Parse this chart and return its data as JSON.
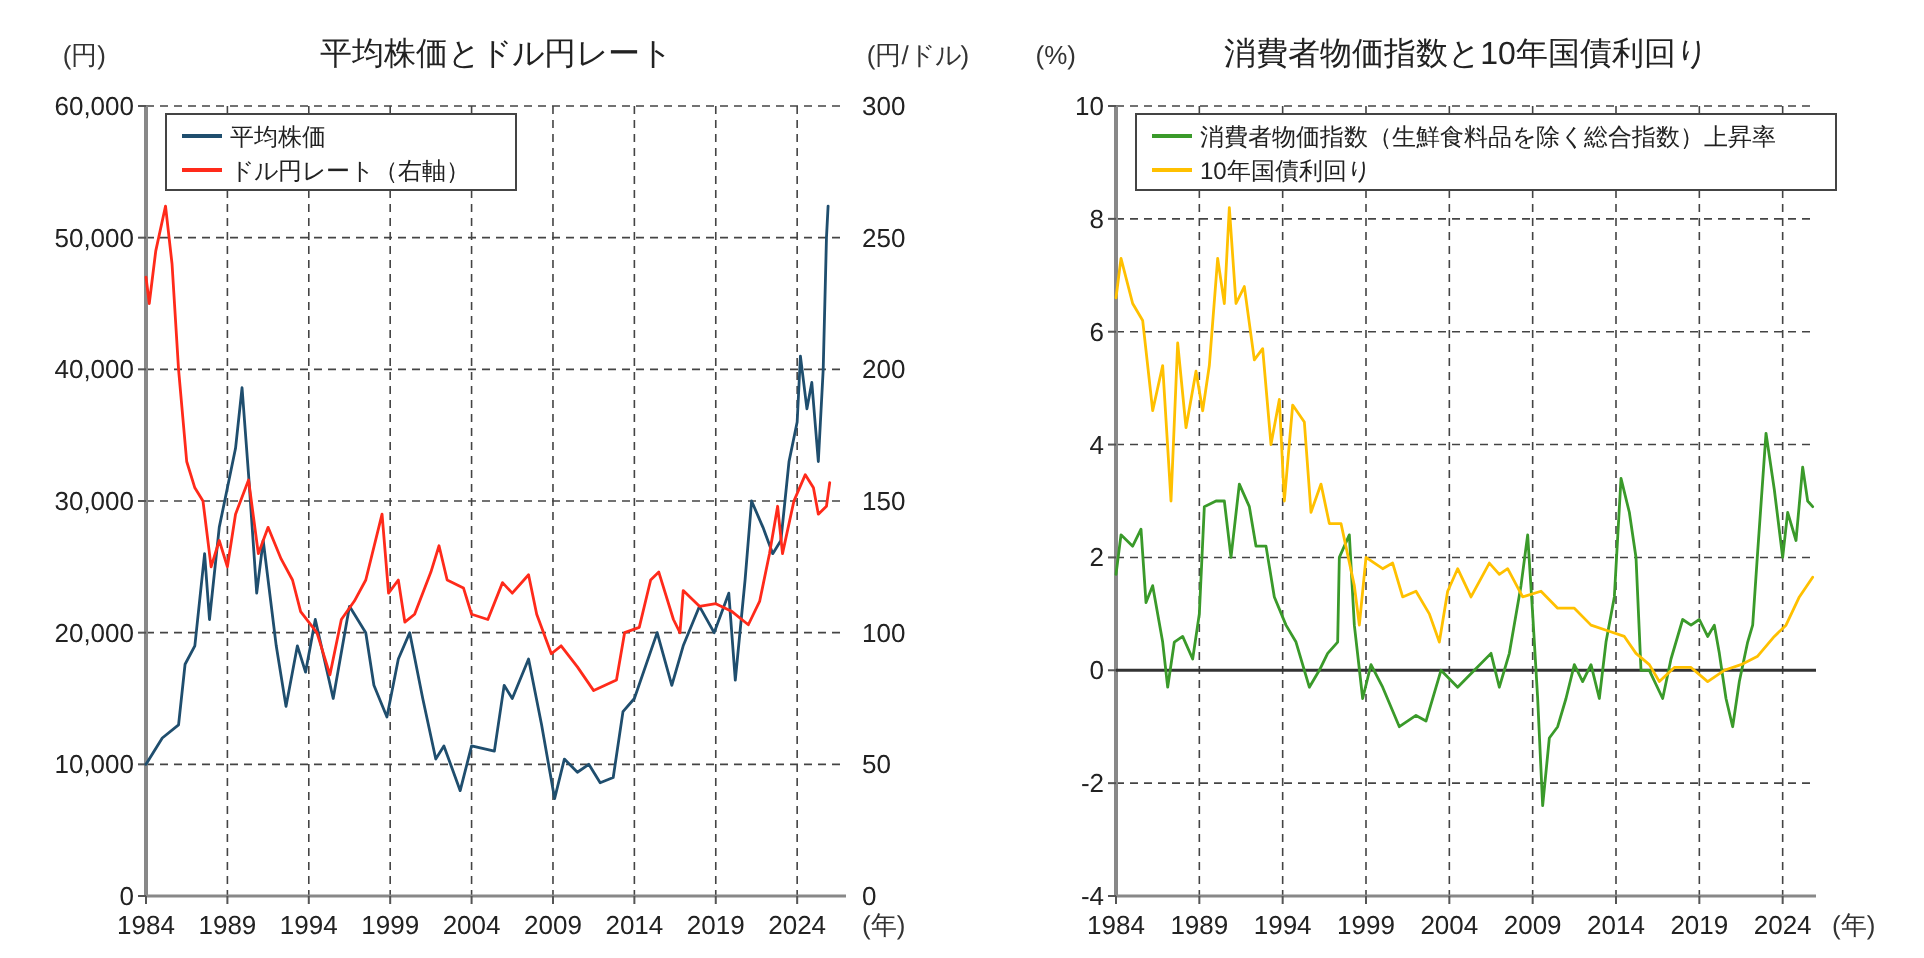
{
  "chart_data": [
    {
      "type": "line",
      "title": "平均株価とドル円レート",
      "ylabel": "(円)",
      "y2label": "(円/ドル)",
      "xlabel": "(年)",
      "xlim": [
        1984,
        2027
      ],
      "xticks": [
        1984,
        1989,
        1994,
        1999,
        2004,
        2009,
        2014,
        2019,
        2024
      ],
      "ylim": [
        0,
        60000
      ],
      "yticks": [
        0,
        {
          "value": 10000,
          "label": "10,000"
        },
        {
          "value": 20000,
          "label": "20,000"
        },
        {
          "value": 30000,
          "label": "30,000"
        },
        {
          "value": 40000,
          "label": "40,000"
        },
        {
          "value": 50000,
          "label": "50,000"
        },
        {
          "value": 60000,
          "label": "60,000"
        }
      ],
      "y2lim": [
        0,
        300
      ],
      "y2ticks": [
        0,
        50,
        100,
        150,
        200,
        250,
        300
      ],
      "grid": true,
      "legend": "top left",
      "line_style": "solid",
      "series": [
        {
          "name": "平均株価",
          "color": "#1f4e6e",
          "x": [
            1984,
            1985,
            1986,
            1986.4,
            1987,
            1987.6,
            1987.9,
            1988.5,
            1989.5,
            1989.9,
            1990.3,
            1990.8,
            1991.2,
            1992,
            1992.6,
            1993.3,
            1993.8,
            1994.4,
            1995.5,
            1996.5,
            1997.5,
            1998,
            1998.8,
            1999.5,
            2000.2,
            2001,
            2001.8,
            2002.3,
            2003.3,
            2004,
            2005.4,
            2006,
            2006.5,
            2007.5,
            2008.3,
            2009.1,
            2009.7,
            2010.5,
            2011.2,
            2011.9,
            2012.7,
            2013.3,
            2014,
            2015.4,
            2016.3,
            2017,
            2018,
            2018.9,
            2019.8,
            2020.2,
            2020.8,
            2021.2,
            2021.9,
            2022.5,
            2023,
            2023.5,
            2024,
            2024.2,
            2024.6,
            2024.9,
            2025.3,
            2025.6,
            2025.8,
            2025.9
          ],
          "values": [
            10000,
            12000,
            13000,
            17600,
            19000,
            26000,
            21000,
            28000,
            34000,
            38600,
            32000,
            23000,
            27000,
            19000,
            14400,
            19000,
            17000,
            21000,
            15000,
            22000,
            20000,
            16000,
            13600,
            18000,
            20000,
            15000,
            10400,
            11400,
            8000,
            11400,
            11000,
            16000,
            15000,
            18000,
            13000,
            7400,
            10400,
            9400,
            10000,
            8600,
            9000,
            14000,
            15000,
            20000,
            16000,
            19000,
            22000,
            20000,
            23000,
            16400,
            24000,
            30000,
            28000,
            26000,
            27000,
            33000,
            36000,
            41000,
            37000,
            39000,
            33000,
            40000,
            50000,
            52400
          ]
        },
        {
          "name": "ドル円レート（右軸）",
          "color": "#ff2a1a",
          "axis": "y2",
          "x": [
            1984,
            1984.2,
            1984.6,
            1985.2,
            1985.6,
            1986,
            1986.5,
            1987,
            1987.5,
            1988,
            1988.5,
            1989,
            1989.5,
            1990.3,
            1990.9,
            1991.5,
            1992.3,
            1993,
            1993.5,
            1994.5,
            1995.3,
            1996,
            1996.8,
            1997.5,
            1998.5,
            1998.9,
            1999.5,
            1999.9,
            2000.5,
            2001.5,
            2002,
            2002.5,
            2003.5,
            2004,
            2005,
            2005.9,
            2006.5,
            2007.5,
            2008,
            2008.9,
            2009.5,
            2010.5,
            2011.5,
            2012.2,
            2012.9,
            2013.4,
            2014.3,
            2015,
            2015.5,
            2016.4,
            2016.8,
            2017,
            2018,
            2019,
            2020,
            2021,
            2021.7,
            2022.3,
            2022.8,
            2023.1,
            2023.8,
            2024.5,
            2025,
            2025.3,
            2025.8,
            2026
          ],
          "values": [
            235,
            225,
            245,
            262,
            240,
            200,
            165,
            155,
            150,
            125,
            135,
            125,
            145,
            158,
            130,
            140,
            128,
            120,
            108,
            100,
            84,
            105,
            112,
            120,
            145,
            115,
            120,
            104,
            107,
            123,
            133,
            120,
            117,
            107,
            105,
            119,
            115,
            122,
            107,
            92,
            95,
            87,
            78,
            80,
            82,
            100,
            102,
            120,
            123,
            105,
            100,
            116,
            110,
            111,
            108,
            103,
            112,
            130,
            148,
            130,
            150,
            160,
            155,
            145,
            148,
            157
          ]
        }
      ]
    },
    {
      "type": "line",
      "title": "消費者物価指数と10年国債利回り",
      "ylabel": "(%)",
      "xlabel": "(年)",
      "xlim": [
        1984,
        2026
      ],
      "xticks": [
        1984,
        1989,
        1994,
        1999,
        2004,
        2009,
        2014,
        2019,
        2024
      ],
      "ylim": [
        -4,
        10
      ],
      "yticks": [
        -4,
        -2,
        0,
        2,
        4,
        6,
        8,
        10
      ],
      "grid": true,
      "legend": "top left",
      "line_style": "solid",
      "series": [
        {
          "name": "消費者物価指数（生鮮食料品を除く総合指数）上昇率",
          "color": "#3a9a2a",
          "x": [
            1984,
            1984.3,
            1985,
            1985.5,
            1985.8,
            1986.2,
            1986.8,
            1987.1,
            1987.5,
            1988,
            1988.6,
            1989,
            1989.3,
            1990,
            1990.5,
            1990.9,
            1991.4,
            1992,
            1992.4,
            1993,
            1993.5,
            1994.2,
            1994.8,
            1995.6,
            1996.2,
            1996.7,
            1997.3,
            1997.4,
            1998,
            1998.3,
            1998.8,
            1999.3,
            2000,
            2001,
            2002,
            2002.6,
            2003.5,
            2004.5,
            2005.5,
            2006.5,
            2007,
            2007.6,
            2008.3,
            2008.7,
            2009,
            2009.3,
            2009.6,
            2010,
            2010.5,
            2011,
            2011.5,
            2012,
            2012.5,
            2013,
            2013.4,
            2013.9,
            2014.3,
            2014.8,
            2015.2,
            2015.5,
            2016,
            2016.8,
            2017.3,
            2018,
            2018.5,
            2019,
            2019.5,
            2019.9,
            2020.2,
            2020.6,
            2021,
            2021.4,
            2021.9,
            2022.2,
            2022.5,
            2023,
            2023.5,
            2024,
            2024.3,
            2024.8,
            2025.2,
            2025.5,
            2025.8
          ],
          "values": [
            1.7,
            2.4,
            2.2,
            2.5,
            1.2,
            1.5,
            0.5,
            -0.3,
            0.5,
            0.6,
            0.2,
            1,
            2.9,
            3,
            3,
            2,
            3.3,
            2.9,
            2.2,
            2.2,
            1.3,
            0.8,
            0.5,
            -0.3,
            0,
            0.3,
            0.5,
            2,
            2.4,
            0.8,
            -0.5,
            0.1,
            -0.3,
            -1,
            -0.8,
            -0.9,
            0,
            -0.3,
            0,
            0.3,
            -0.3,
            0.3,
            1.5,
            2.4,
            1,
            -0.5,
            -2.4,
            -1.2,
            -1,
            -0.5,
            0.1,
            -0.2,
            0.1,
            -0.5,
            0.5,
            1.3,
            3.4,
            2.8,
            2,
            0,
            0,
            -0.5,
            0.2,
            0.9,
            0.8,
            0.9,
            0.6,
            0.8,
            0.3,
            -0.5,
            -1,
            -0.2,
            0.5,
            0.8,
            2.1,
            4.2,
            3.2,
            2,
            2.8,
            2.3,
            3.6,
            3,
            2.9
          ]
        },
        {
          "name": "10年国債利回り",
          "color": "#ffc000",
          "x": [
            1984,
            1984.3,
            1985,
            1985.6,
            1986.2,
            1986.8,
            1987.3,
            1987.7,
            1988.2,
            1988.8,
            1989.2,
            1989.6,
            1990.1,
            1990.5,
            1990.8,
            1991.2,
            1991.7,
            1992.3,
            1992.8,
            1993.3,
            1993.8,
            1994.1,
            1994.6,
            1995.3,
            1995.7,
            1996.3,
            1996.8,
            1997.5,
            1998.3,
            1998.6,
            1999,
            2000,
            2000.6,
            2001.2,
            2002,
            2002.8,
            2003.4,
            2003.9,
            2004.5,
            2005.3,
            2006.4,
            2007,
            2007.5,
            2008.4,
            2009.5,
            2010.5,
            2011.5,
            2012.5,
            2013.5,
            2014.5,
            2015.2,
            2016,
            2016.6,
            2017.5,
            2018.5,
            2019.5,
            2020.5,
            2021.5,
            2022.5,
            2023.5,
            2024.2,
            2025,
            2025.8
          ],
          "values": [
            6.6,
            7.3,
            6.5,
            6.2,
            4.6,
            5.4,
            3,
            5.8,
            4.3,
            5.3,
            4.6,
            5.4,
            7.3,
            6.5,
            8.2,
            6.5,
            6.8,
            5.5,
            5.7,
            4,
            4.8,
            3,
            4.7,
            4.4,
            2.8,
            3.3,
            2.6,
            2.6,
            1.5,
            0.8,
            2,
            1.8,
            1.9,
            1.3,
            1.4,
            1,
            0.5,
            1.4,
            1.8,
            1.3,
            1.9,
            1.7,
            1.8,
            1.3,
            1.4,
            1.1,
            1.1,
            0.8,
            0.7,
            0.6,
            0.3,
            0.1,
            -0.2,
            0.05,
            0.05,
            -0.2,
            0,
            0.1,
            0.25,
            0.6,
            0.8,
            1.3,
            1.65
          ]
        }
      ]
    }
  ]
}
